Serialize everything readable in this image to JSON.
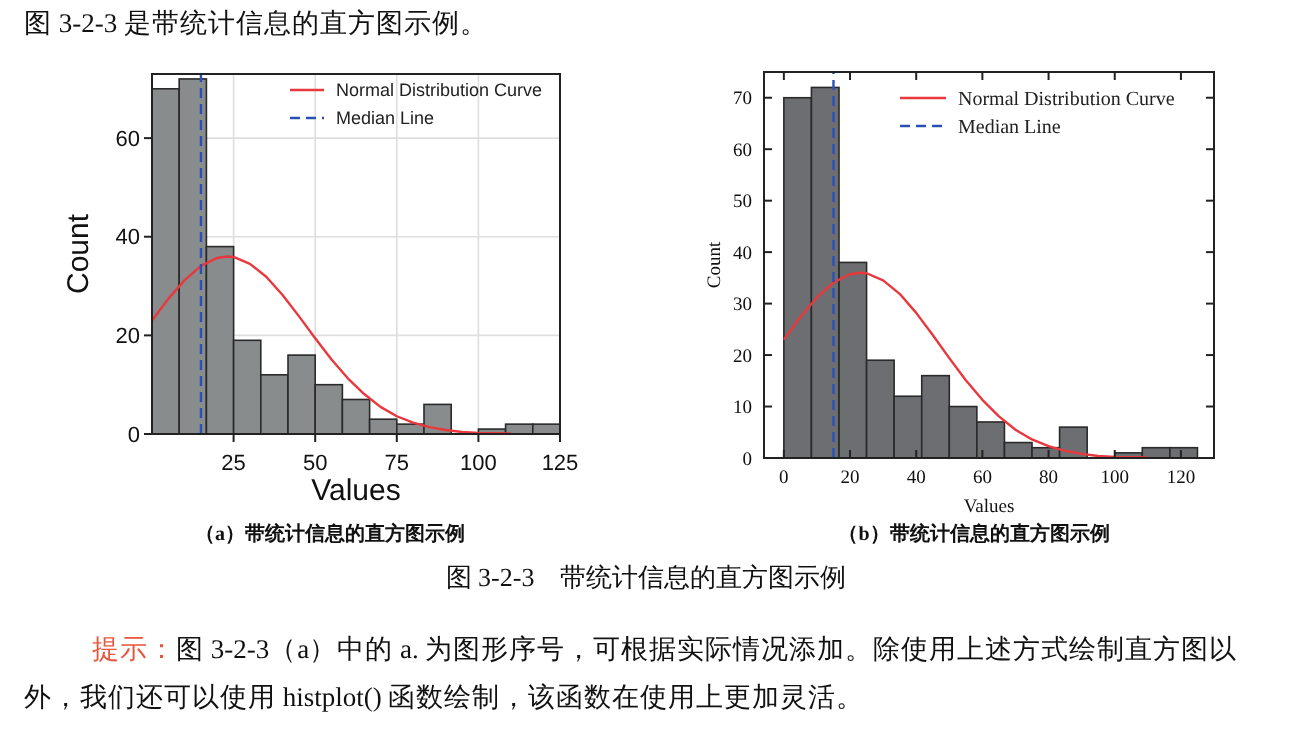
{
  "chart_data": [
    {
      "type": "other",
      "title": "图 3-2-3 是带统计信息的直方图示例。"
    },
    {
      "type": "histogram",
      "bins": [
        0,
        8.33,
        16.67,
        25,
        33.33,
        41.67,
        50,
        58.33,
        66.67,
        75,
        83.33,
        91.67,
        100,
        108.33,
        116.67,
        125
      ],
      "values": [
        70,
        72,
        38,
        19,
        12,
        16,
        10,
        7,
        3,
        2,
        6,
        0,
        1,
        2,
        2
      ],
      "color": "#888c8c",
      "xlabel": "Values",
      "ylabel": "Count",
      "xlim": [
        0,
        125
      ],
      "xticks": [
        25,
        50,
        75,
        100,
        125
      ],
      "ylim": [
        0,
        73
      ],
      "yticks": [
        0,
        20,
        40,
        60
      ],
      "grid": true,
      "legend": "top right",
      "series": [
        {
          "type": "line",
          "name": "Normal Distribution Curve",
          "color": "#e8383d",
          "x": [
            0,
            5,
            10,
            15,
            20,
            23,
            25,
            30,
            35,
            40,
            45,
            50,
            55,
            60,
            65,
            70,
            75,
            80,
            85,
            90,
            95,
            100,
            110
          ],
          "values": [
            23.0,
            27.4,
            31.2,
            34.1,
            35.7,
            36,
            35.9,
            34.5,
            31.9,
            28.2,
            23.9,
            19.4,
            15.1,
            11.3,
            8.1,
            5.5,
            3.6,
            2.3,
            1.4,
            0.8,
            0.4,
            0.2,
            0.1
          ]
        },
        {
          "type": "line",
          "name": "Median Line",
          "color": "#2b50b8",
          "line_style": "dashed",
          "x": [
            15,
            15
          ],
          "values": [
            0,
            73
          ]
        }
      ],
      "annotations": [
        "（a）带统计信息的直方图示例"
      ]
    },
    {
      "type": "histogram",
      "bins": [
        0,
        8.33,
        16.67,
        25,
        33.33,
        41.67,
        50,
        58.33,
        66.67,
        75,
        83.33,
        91.67,
        100,
        108.33,
        116.67,
        125
      ],
      "values": [
        70,
        72,
        38,
        19,
        12,
        16,
        10,
        7,
        3,
        2,
        6,
        0,
        1,
        2,
        2
      ],
      "color": "#6d6e72",
      "xlabel": "Values",
      "ylabel": "Count",
      "xlim": [
        -6,
        130
      ],
      "xticks": [
        0,
        20,
        40,
        60,
        80,
        100,
        120
      ],
      "ylim": [
        0,
        75
      ],
      "yticks": [
        0,
        10,
        20,
        30,
        40,
        50,
        60,
        70
      ],
      "legend": "top right",
      "series": [
        {
          "type": "line",
          "name": "Normal Distribution Curve",
          "color": "#e8383d",
          "x": [
            0,
            5,
            10,
            15,
            20,
            23,
            25,
            30,
            35,
            40,
            45,
            50,
            55,
            60,
            65,
            70,
            75,
            80,
            85,
            90,
            95,
            100,
            110
          ],
          "values": [
            23.0,
            27.4,
            31.2,
            34.1,
            35.7,
            36,
            35.9,
            34.5,
            31.9,
            28.2,
            23.9,
            19.4,
            15.1,
            11.3,
            8.1,
            5.5,
            3.6,
            2.3,
            1.4,
            0.8,
            0.4,
            0.2,
            0.1
          ]
        },
        {
          "type": "line",
          "name": "Median Line",
          "color": "#2b50b8",
          "line_style": "dashed",
          "x": [
            15,
            15
          ],
          "values": [
            0,
            75
          ]
        }
      ],
      "annotations": [
        "（b）带统计信息的直方图示例"
      ]
    },
    {
      "type": "other",
      "annotations": [
        "图 3-2-3　带统计信息的直方图示例",
        "提示：",
        "图 3-2-3（a）中的 a. 为图形序号，可根据实际情况添加。除使用上述方式绘制直方图以外，我们还可以使用 histplot() 函数绘制，该函数在使用上更加灵活。"
      ]
    }
  ]
}
